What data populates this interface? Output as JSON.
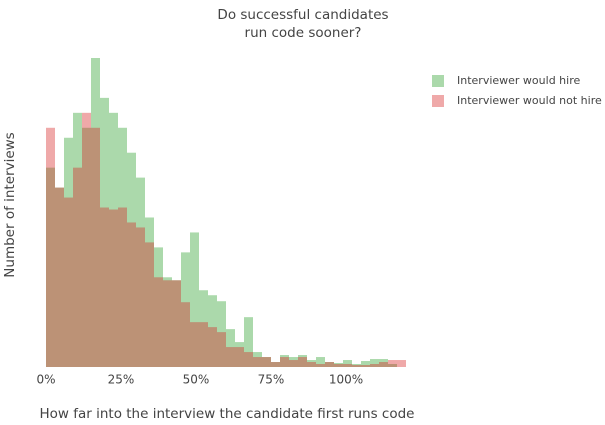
{
  "chart_data": {
    "type": "histogram",
    "title": [
      "Do successful candidates",
      "run code sooner?"
    ],
    "x_label": "How far into the interview the candidate first runs code",
    "y_label": "Number of interviews",
    "bins": [
      0,
      3,
      6,
      9,
      12,
      15,
      18,
      21,
      24,
      27,
      30,
      33,
      36,
      39,
      42,
      45,
      48,
      51,
      54,
      57,
      60,
      63,
      66,
      69,
      72,
      75,
      78,
      81,
      84,
      87,
      90,
      93,
      96,
      99,
      102,
      105,
      108,
      111,
      114,
      117,
      120
    ],
    "series": [
      {
        "name": "Interviewer would hire",
        "color": "#2ca02c",
        "values": [
          20,
          18,
          23,
          25.5,
          24,
          31,
          27,
          25.5,
          24,
          21.5,
          19,
          15,
          12,
          9,
          8.7,
          11.5,
          13.5,
          7.7,
          7.2,
          6.6,
          3.8,
          2.5,
          5,
          1.5,
          1,
          0.5,
          1.2,
          1,
          1.2,
          0.7,
          1,
          0.5,
          0.4,
          0.7,
          0.3,
          0.6,
          0.8,
          0.8,
          0.3,
          0
        ]
      },
      {
        "name": "Interviewer would not hire",
        "color": "#d62728",
        "values": [
          24,
          18,
          17,
          20,
          25.5,
          24,
          16,
          15.8,
          16,
          14.5,
          14,
          12.5,
          9,
          8.7,
          8.7,
          6.5,
          4.5,
          4.5,
          4,
          3.5,
          2,
          2,
          1.5,
          1,
          1,
          0.5,
          1,
          0.7,
          1,
          0.5,
          0.3,
          0.5,
          0.3,
          0.3,
          0.2,
          0.2,
          0.3,
          0.5,
          0.7,
          0.7
        ]
      }
    ],
    "xlim": [
      0,
      120
    ],
    "xticks": [
      {
        "value": 0,
        "label": "0%"
      },
      {
        "value": 25,
        "label": "25%"
      },
      {
        "value": 50,
        "label": "50%"
      },
      {
        "value": 75,
        "label": "75%"
      },
      {
        "value": 100,
        "label": "100%"
      }
    ],
    "ylim": [
      0,
      31
    ],
    "opacity": 0.4
  }
}
